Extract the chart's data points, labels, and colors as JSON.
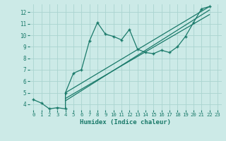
{
  "title": "",
  "xlabel": "Humidex (Indice chaleur)",
  "xlim": [
    -0.5,
    23.5
  ],
  "ylim": [
    3.5,
    12.7
  ],
  "xticks": [
    0,
    1,
    2,
    3,
    4,
    5,
    6,
    7,
    8,
    9,
    10,
    11,
    12,
    13,
    14,
    15,
    16,
    17,
    18,
    19,
    20,
    21,
    22,
    23
  ],
  "yticks": [
    4,
    5,
    6,
    7,
    8,
    9,
    10,
    11,
    12
  ],
  "bg_color": "#cceae7",
  "line_color": "#1a7a6a",
  "grid_color": "#aad4d0",
  "series1_x": [
    0,
    1,
    2,
    3,
    4,
    4,
    5,
    6,
    7,
    8,
    9,
    10,
    11,
    12,
    13,
    14,
    15,
    16,
    17,
    18,
    19,
    20,
    21,
    22
  ],
  "series1_y": [
    4.4,
    4.1,
    3.6,
    3.7,
    3.6,
    5.0,
    6.7,
    7.0,
    9.5,
    11.1,
    10.1,
    9.9,
    9.6,
    10.5,
    8.8,
    8.5,
    8.4,
    8.7,
    8.5,
    9.0,
    9.9,
    11.1,
    12.3,
    12.5
  ],
  "series2_x": [
    4,
    22
  ],
  "series2_y": [
    4.5,
    11.8
  ],
  "series3_x": [
    4,
    22
  ],
  "series3_y": [
    5.0,
    12.5
  ],
  "series4_x": [
    4,
    22
  ],
  "series4_y": [
    4.3,
    12.2
  ]
}
